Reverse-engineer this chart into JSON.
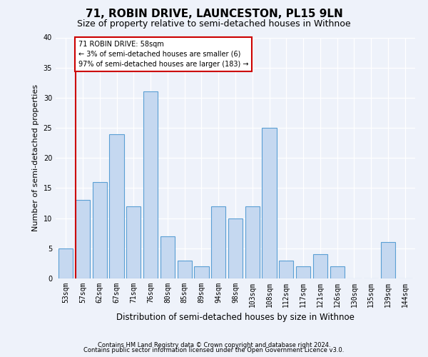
{
  "title": "71, ROBIN DRIVE, LAUNCESTON, PL15 9LN",
  "subtitle": "Size of property relative to semi-detached houses in Withnoe",
  "xlabel": "Distribution of semi-detached houses by size in Withnoe",
  "ylabel": "Number of semi-detached properties",
  "categories": [
    "53sqm",
    "57sqm",
    "62sqm",
    "67sqm",
    "71sqm",
    "76sqm",
    "80sqm",
    "85sqm",
    "89sqm",
    "94sqm",
    "98sqm",
    "103sqm",
    "108sqm",
    "112sqm",
    "117sqm",
    "121sqm",
    "126sqm",
    "130sqm",
    "135sqm",
    "139sqm",
    "144sqm"
  ],
  "values": [
    5,
    13,
    16,
    24,
    12,
    31,
    7,
    3,
    2,
    12,
    10,
    12,
    25,
    3,
    2,
    4,
    2,
    0,
    0,
    6,
    0
  ],
  "bar_color": "#c5d8f0",
  "bar_edge_color": "#5a9fd4",
  "red_line_bar_index": 1,
  "annotation_title": "71 ROBIN DRIVE: 58sqm",
  "annotation_line1": "← 3% of semi-detached houses are smaller (6)",
  "annotation_line2": "97% of semi-detached houses are larger (183) →",
  "annotation_box_color": "#ffffff",
  "annotation_box_edge": "#cc0000",
  "red_line_color": "#cc0000",
  "ylim": [
    0,
    40
  ],
  "yticks": [
    0,
    5,
    10,
    15,
    20,
    25,
    30,
    35,
    40
  ],
  "footer1": "Contains HM Land Registry data © Crown copyright and database right 2024.",
  "footer2": "Contains public sector information licensed under the Open Government Licence v3.0.",
  "bg_color": "#eef2fa",
  "plot_bg_color": "#eef2fa",
  "title_fontsize": 11,
  "subtitle_fontsize": 9,
  "tick_fontsize": 7,
  "ylabel_fontsize": 8,
  "xlabel_fontsize": 8.5,
  "footer_fontsize": 6
}
